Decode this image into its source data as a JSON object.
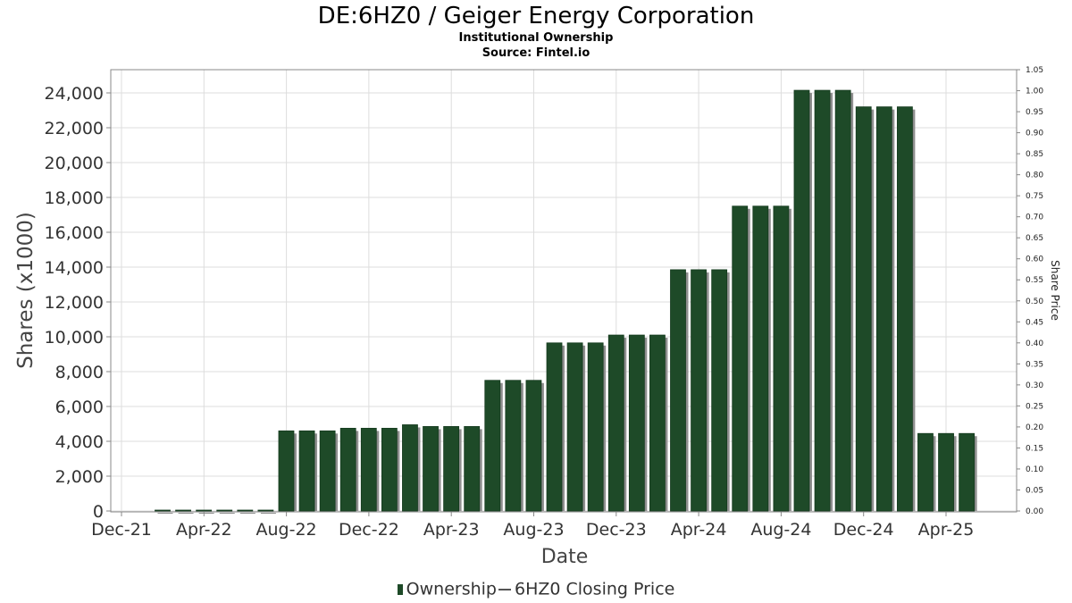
{
  "header": {
    "title": "DE:6HZ0 / Geiger Energy Corporation",
    "subtitle": "Institutional Ownership",
    "source": "Source: Fintel.io"
  },
  "legend": {
    "ownership": "Ownership",
    "price": "6HZ0 Closing Price"
  },
  "colors": {
    "bar": "#1e4a28",
    "bar_shadow": "#8f8f8f",
    "grid": "#dddddd",
    "axis": "#888888"
  },
  "chart_data": {
    "type": "bar",
    "xlabel": "Date",
    "ylabel": "Shares (x1000)",
    "y2label": "Share Price",
    "ylim": [
      0,
      25000
    ],
    "y2lim": [
      0,
      1.05
    ],
    "y_ticks": [
      0,
      2000,
      4000,
      6000,
      8000,
      10000,
      12000,
      14000,
      16000,
      18000,
      20000,
      22000,
      24000
    ],
    "y_tick_labels": [
      "0",
      "2,000",
      "4,000",
      "6,000",
      "8,000",
      "10,000",
      "12,000",
      "14,000",
      "16,000",
      "18,000",
      "20,000",
      "22,000",
      "24,000"
    ],
    "y2_tick_labels": [
      "0.00",
      "0.05",
      "0.10",
      "0.15",
      "0.20",
      "0.25",
      "0.30",
      "0.35",
      "0.40",
      "0.45",
      "0.50",
      "0.55",
      "0.60",
      "0.65",
      "0.70",
      "0.75",
      "0.80",
      "0.85",
      "0.90",
      "0.95",
      "1.00",
      "1.05"
    ],
    "x_tick_labels": [
      "Dec-21",
      "Apr-22",
      "Aug-22",
      "Dec-22",
      "Apr-23",
      "Aug-23",
      "Dec-23",
      "Apr-24",
      "Aug-24",
      "Dec-24",
      "Apr-25"
    ],
    "grid": true,
    "legend_position": "bottom",
    "series": [
      {
        "name": "Ownership",
        "values": [
          0,
          0,
          0,
          0,
          0,
          0,
          4600,
          4600,
          4600,
          4750,
          4750,
          4750,
          4950,
          4850,
          4850,
          4850,
          7500,
          7500,
          7500,
          9650,
          9650,
          9650,
          10100,
          10100,
          10100,
          13850,
          13850,
          13850,
          17500,
          17500,
          17500,
          24150,
          24150,
          24150,
          23200,
          23200,
          23200,
          4450,
          4450,
          4450
        ]
      }
    ]
  }
}
